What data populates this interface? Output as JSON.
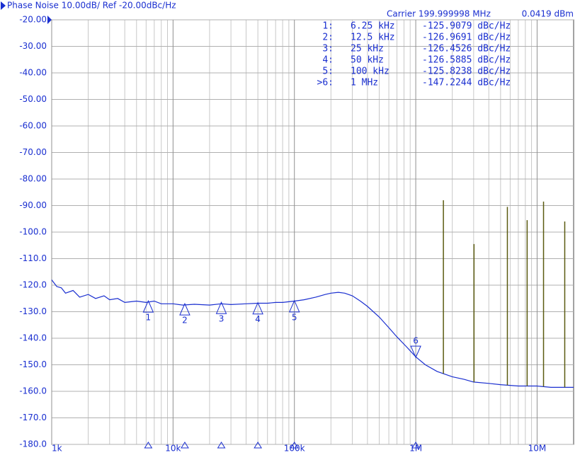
{
  "chart_data": {
    "type": "line",
    "log_x": true,
    "grid": true,
    "title": "Phase Noise 10.00dB/ Ref -20.00dBc/Hz",
    "carrier": "Carrier 199.999998 MHz",
    "power": "0.0419 dBm",
    "xlim": [
      1000,
      20000000
    ],
    "xticks": [
      {
        "value": 1000,
        "label": "1k"
      },
      {
        "value": 10000,
        "label": "10k"
      },
      {
        "value": 100000,
        "label": "100k"
      },
      {
        "value": 1000000,
        "label": "1M"
      },
      {
        "value": 10000000,
        "label": "10M"
      }
    ],
    "ylim": [
      -180,
      -20
    ],
    "yticks": [
      {
        "value": -20,
        "label": "-20.00"
      },
      {
        "value": -30,
        "label": "-30.00"
      },
      {
        "value": -40,
        "label": "-40.00"
      },
      {
        "value": -50,
        "label": "-50.00"
      },
      {
        "value": -60,
        "label": "-60.00"
      },
      {
        "value": -70,
        "label": "-70.00"
      },
      {
        "value": -80,
        "label": "-80.00"
      },
      {
        "value": -90,
        "label": "-90.00"
      },
      {
        "value": -100,
        "label": "-100.0"
      },
      {
        "value": -110,
        "label": "-110.0"
      },
      {
        "value": -120,
        "label": "-120.0"
      },
      {
        "value": -130,
        "label": "-130.0"
      },
      {
        "value": -140,
        "label": "-140.0"
      },
      {
        "value": -150,
        "label": "-150.0"
      },
      {
        "value": -160,
        "label": "-160.0"
      },
      {
        "value": -170,
        "label": "-170.0"
      },
      {
        "value": -180,
        "label": "-180.0"
      }
    ],
    "color": "#1a2fd0",
    "x": [
      1000,
      1100,
      1200,
      1300,
      1500,
      1700,
      2000,
      2300,
      2700,
      3000,
      3500,
      4000,
      5000,
      6000,
      7000,
      8000,
      10000,
      12000,
      15000,
      20000,
      25000,
      30000,
      40000,
      50000,
      60000,
      70000,
      80000,
      100000,
      120000,
      150000,
      180000,
      200000,
      230000,
      260000,
      300000,
      350000,
      400000,
      500000,
      600000,
      700000,
      850000,
      1000000,
      1200000,
      1500000,
      2000000,
      2500000,
      3000000,
      4000000,
      5000000,
      7000000,
      10000000,
      13000000,
      16000000,
      20000000
    ],
    "values": [
      -118,
      -120.5,
      -121,
      -123,
      -122,
      -124.5,
      -123.5,
      -125,
      -124,
      -125.5,
      -125,
      -126.5,
      -126,
      -126.5,
      -126,
      -127,
      -127,
      -127.5,
      -127.2,
      -127.5,
      -127,
      -127.3,
      -127,
      -126.8,
      -126.8,
      -126.5,
      -126.5,
      -126,
      -125.5,
      -124.5,
      -123.5,
      -123,
      -122.7,
      -123,
      -124,
      -126,
      -128,
      -132,
      -136,
      -139.5,
      -143.5,
      -147,
      -150,
      -152.5,
      -154.5,
      -155.5,
      -156.5,
      -157,
      -157.5,
      -158,
      -158,
      -158.5,
      -158.5,
      -158.5
    ],
    "spurs": {
      "color": "#5a5a10",
      "x": [
        1690000,
        3020000,
        5690000,
        8280000,
        11300000,
        16900000
      ],
      "values": [
        -88,
        -104.5,
        -90.5,
        -95.5,
        -88.5,
        -96
      ]
    },
    "markers": [
      {
        "label": "1:",
        "id": "1",
        "x": 6250,
        "x_label": "6.25 kHz",
        "value": -125.9079,
        "value_label": "-125.9079 dBc/Hz"
      },
      {
        "label": "2:",
        "id": "2",
        "x": 12500,
        "x_label": "12.5 kHz",
        "value": -126.9691,
        "value_label": "-126.9691 dBc/Hz"
      },
      {
        "label": "3:",
        "id": "3",
        "x": 25000,
        "x_label": "25 kHz",
        "value": -126.4526,
        "value_label": "-126.4526 dBc/Hz"
      },
      {
        "label": "4:",
        "id": "4",
        "x": 50000,
        "x_label": "50 kHz",
        "value": -126.5885,
        "value_label": "-126.5885 dBc/Hz"
      },
      {
        "label": "5:",
        "id": "5",
        "x": 100000,
        "x_label": "100 kHz",
        "value": -125.8238,
        "value_label": "-125.8238 dBc/Hz"
      },
      {
        "label": ">6:",
        "id": "6",
        "x": 1000000,
        "x_label": "1 MHz",
        "value": -147.2244,
        "value_label": "-147.2244 dBc/Hz",
        "active": true
      }
    ]
  }
}
